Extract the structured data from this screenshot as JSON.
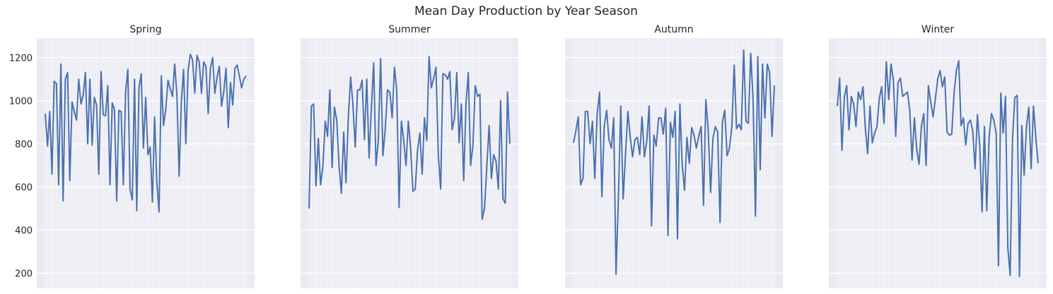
{
  "figure": {
    "suptitle": "Mean Day Production by Year Season"
  },
  "theme": {
    "panel_bg": "#EAEAF2",
    "grid": "#FFFFFF",
    "line": "#4C72B0",
    "text": "#262626"
  },
  "chart_data": [
    {
      "type": "line",
      "title": "Spring",
      "xlabel": "",
      "ylabel": "",
      "ylim": [
        130,
        1290
      ],
      "yticks": [
        200,
        400,
        600,
        800,
        1000,
        1200
      ],
      "show_yticklabels": true,
      "grid": true,
      "series": [
        {
          "values": [
            940,
            790,
            950,
            660,
            1090,
            1080,
            610,
            1170,
            535,
            1100,
            1130,
            630,
            995,
            950,
            910,
            1100,
            985,
            1025,
            1130,
            800,
            1100,
            795,
            1015,
            980,
            660,
            1135,
            935,
            930,
            1070,
            610,
            990,
            960,
            535,
            955,
            950,
            610,
            1040,
            1145,
            590,
            540,
            1100,
            490,
            1060,
            1125,
            780,
            1015,
            750,
            785,
            530,
            925,
            620,
            485,
            1115,
            885,
            960,
            1095,
            1055,
            1020,
            1170,
            1025,
            650,
            1000,
            1145,
            800,
            1140,
            1215,
            1190,
            1035,
            1210,
            1180,
            1035,
            1180,
            1160,
            940,
            1150,
            1200,
            1035,
            1110,
            1160,
            975,
            1040,
            1150,
            875,
            1085,
            980,
            1150,
            1165,
            1115,
            1060,
            1100,
            1115
          ]
        }
      ]
    },
    {
      "type": "line",
      "title": "Summer",
      "xlabel": "",
      "ylabel": "",
      "ylim": [
        130,
        1290
      ],
      "yticks": [
        200,
        400,
        600,
        800,
        1000,
        1200
      ],
      "show_yticklabels": false,
      "grid": true,
      "series": [
        {
          "values": [
            500,
            975,
            985,
            605,
            825,
            610,
            695,
            905,
            835,
            1050,
            690,
            970,
            910,
            700,
            570,
            855,
            620,
            920,
            1110,
            985,
            785,
            1050,
            1050,
            1095,
            820,
            1100,
            735,
            965,
            1175,
            700,
            810,
            1195,
            745,
            865,
            1050,
            1040,
            920,
            1155,
            1050,
            505,
            905,
            820,
            700,
            905,
            785,
            580,
            590,
            770,
            850,
            660,
            920,
            815,
            1205,
            1060,
            1105,
            1155,
            750,
            590,
            1125,
            1120,
            1100,
            1135,
            865,
            920,
            1130,
            805,
            985,
            630,
            990,
            1130,
            700,
            795,
            1070,
            1020,
            1030,
            450,
            500,
            695,
            885,
            640,
            750,
            720,
            590,
            1000,
            545,
            525,
            1040,
            800
          ]
        }
      ]
    },
    {
      "type": "line",
      "title": "Autumn",
      "xlabel": "",
      "ylabel": "",
      "ylim": [
        130,
        1290
      ],
      "yticks": [
        200,
        400,
        600,
        800,
        1000,
        1200
      ],
      "show_yticklabels": false,
      "grid": true,
      "series": [
        {
          "values": [
            805,
            860,
            925,
            610,
            640,
            950,
            950,
            800,
            905,
            640,
            940,
            1040,
            555,
            880,
            955,
            820,
            780,
            920,
            195,
            555,
            975,
            545,
            750,
            950,
            830,
            740,
            820,
            830,
            750,
            925,
            740,
            815,
            975,
            420,
            840,
            790,
            920,
            920,
            845,
            965,
            375,
            900,
            830,
            950,
            360,
            985,
            700,
            585,
            830,
            710,
            875,
            840,
            780,
            835,
            880,
            515,
            1005,
            870,
            575,
            825,
            880,
            855,
            435,
            900,
            955,
            745,
            780,
            880,
            1165,
            870,
            890,
            865,
            1235,
            905,
            895,
            1220,
            1005,
            465,
            1205,
            680,
            1170,
            920,
            1170,
            1130,
            835,
            1070
          ]
        }
      ]
    },
    {
      "type": "line",
      "title": "Winter",
      "xlabel": "",
      "ylabel": "",
      "ylim": [
        130,
        1290
      ],
      "yticks": [
        200,
        400,
        600,
        800,
        1000,
        1200
      ],
      "show_yticklabels": false,
      "grid": true,
      "series": [
        {
          "values": [
            975,
            1105,
            770,
            1015,
            1070,
            865,
            1020,
            985,
            880,
            1040,
            1005,
            1065,
            875,
            755,
            975,
            805,
            850,
            880,
            1010,
            1065,
            895,
            1180,
            1005,
            1170,
            1095,
            835,
            1085,
            1105,
            1020,
            1030,
            1040,
            960,
            725,
            920,
            775,
            705,
            880,
            940,
            700,
            1070,
            995,
            925,
            1010,
            1100,
            1140,
            1065,
            1110,
            855,
            840,
            845,
            1035,
            1140,
            1185,
            885,
            920,
            795,
            895,
            910,
            860,
            685,
            935,
            790,
            485,
            880,
            490,
            830,
            940,
            910,
            850,
            235,
            1035,
            850,
            1020,
            320,
            190,
            820,
            1015,
            1025,
            185,
            885,
            655,
            880,
            970,
            685,
            975,
            830,
            710
          ]
        }
      ]
    }
  ]
}
